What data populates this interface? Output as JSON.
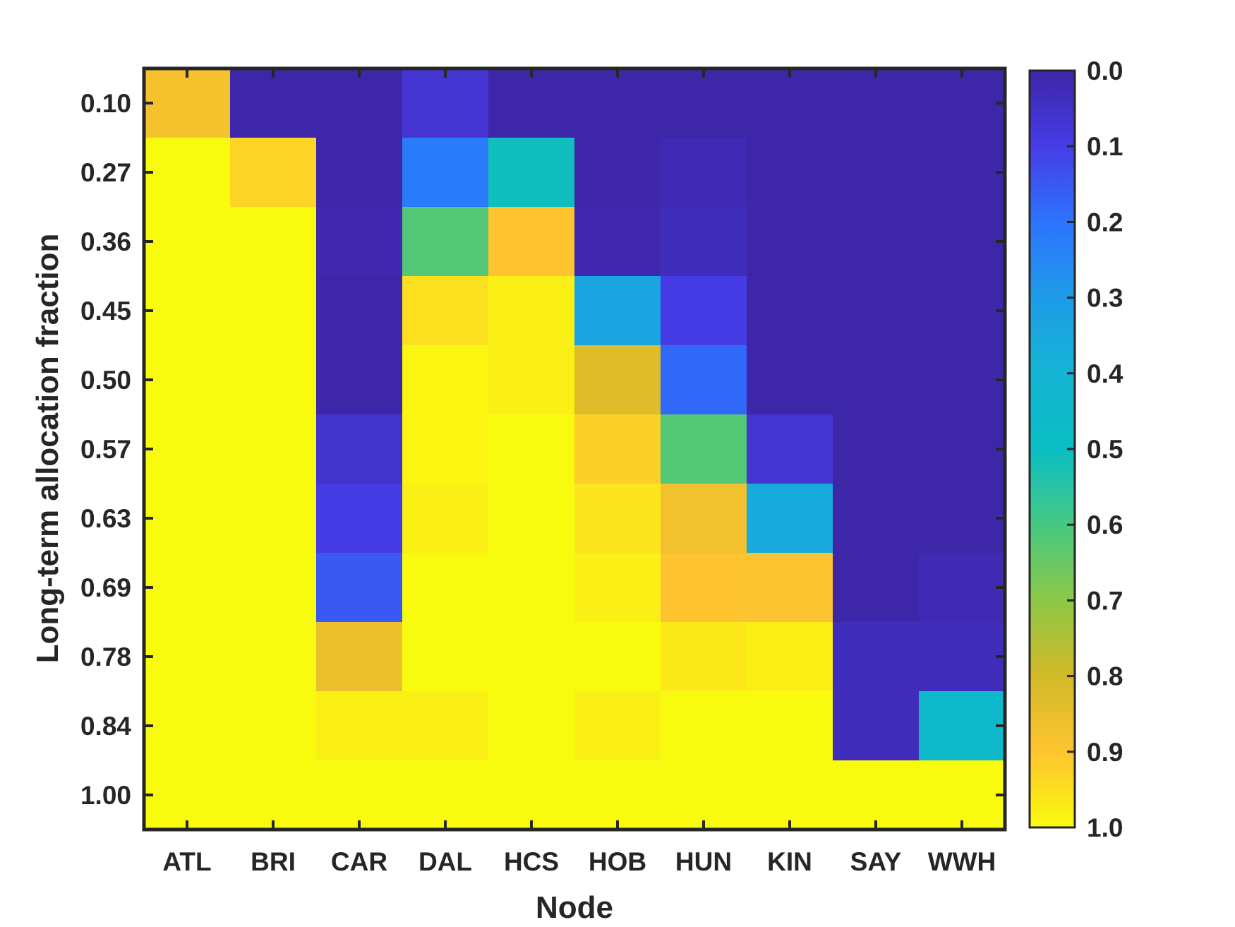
{
  "chart_data": {
    "type": "heatmap",
    "title": "",
    "xlabel": "Node",
    "ylabel": "Long-term allocation fraction",
    "x_categories": [
      "ATL",
      "BRI",
      "CAR",
      "DAL",
      "HCS",
      "HOB",
      "HUN",
      "KIN",
      "SAY",
      "WWH"
    ],
    "y_categories": [
      "0.10",
      "0.27",
      "0.36",
      "0.45",
      "0.50",
      "0.57",
      "0.63",
      "0.69",
      "0.78",
      "0.84",
      "1.00"
    ],
    "values": [
      [
        0.88,
        0.0,
        0.0,
        0.07,
        0.0,
        0.0,
        0.0,
        0.0,
        0.0,
        0.0
      ],
      [
        1.0,
        0.93,
        0.0,
        0.22,
        0.51,
        0.0,
        0.02,
        0.0,
        0.0,
        0.0
      ],
      [
        1.0,
        1.0,
        0.01,
        0.62,
        0.9,
        0.01,
        0.03,
        0.0,
        0.0,
        0.0
      ],
      [
        1.0,
        1.0,
        0.0,
        0.95,
        0.98,
        0.34,
        0.1,
        0.0,
        0.0,
        0.0
      ],
      [
        1.0,
        1.0,
        0.0,
        0.99,
        0.98,
        0.83,
        0.18,
        0.0,
        0.0,
        0.0
      ],
      [
        1.0,
        1.0,
        0.06,
        0.99,
        1.0,
        0.92,
        0.62,
        0.07,
        0.0,
        0.0
      ],
      [
        1.0,
        1.0,
        0.1,
        0.98,
        1.0,
        0.96,
        0.87,
        0.36,
        0.0,
        0.0
      ],
      [
        1.0,
        1.0,
        0.15,
        1.0,
        1.0,
        0.98,
        0.9,
        0.89,
        0.0,
        0.02
      ],
      [
        1.0,
        1.0,
        0.86,
        1.0,
        1.0,
        1.0,
        0.97,
        0.98,
        0.03,
        0.03
      ],
      [
        1.0,
        1.0,
        0.98,
        0.98,
        1.0,
        0.98,
        1.0,
        1.0,
        0.03,
        0.45
      ],
      [
        1.0,
        1.0,
        1.0,
        1.0,
        1.0,
        1.0,
        1.0,
        1.0,
        1.0,
        1.0
      ]
    ],
    "colorbar": {
      "min": 0.0,
      "max": 1.0,
      "direction": "0 at top, 1 at bottom",
      "tick_labels": [
        "0.0",
        "0.1",
        "0.2",
        "0.3",
        "0.4",
        "0.5",
        "0.6",
        "0.7",
        "0.8",
        "0.9",
        "1.0"
      ],
      "colormap": "parula"
    },
    "grid": false,
    "legend": "none"
  }
}
